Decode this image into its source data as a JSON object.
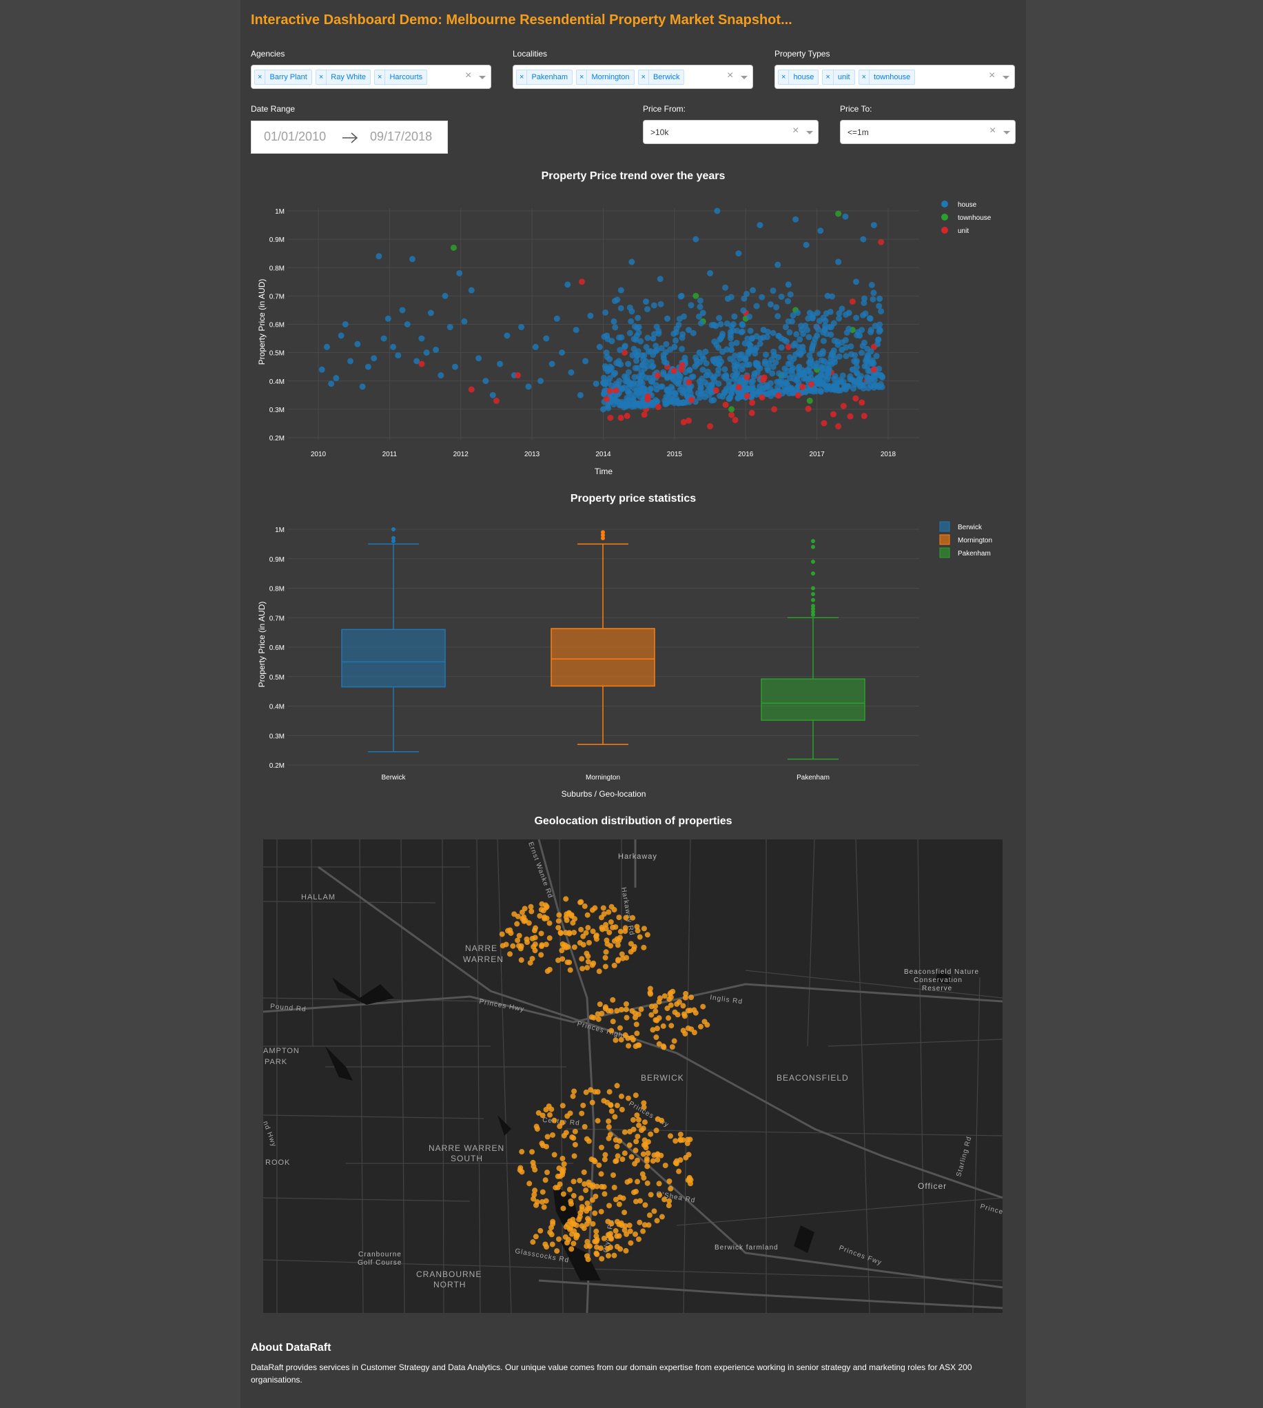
{
  "title": "Interactive Dashboard Demo: Melbourne Resendential Property Market Snapshot...",
  "filters": {
    "agencies": {
      "label": "Agencies",
      "selected": [
        "Barry Plant",
        "Ray White",
        "Harcourts"
      ]
    },
    "localities": {
      "label": "Localities",
      "selected": [
        "Pakenham",
        "Mornington",
        "Berwick"
      ]
    },
    "property_types": {
      "label": "Property Types",
      "selected": [
        "house",
        "unit",
        "townhouse"
      ]
    },
    "date_range": {
      "label": "Date Range",
      "start": "01/01/2010",
      "end": "09/17/2018"
    },
    "price_from": {
      "label": "Price From:",
      "value": ">10k"
    },
    "price_to": {
      "label": "Price To:",
      "value": "<=1m"
    },
    "clear_icon": "×"
  },
  "colors": {
    "accent": "#f49e1c",
    "house": "#1f77b4",
    "townhouse": "#2ca02c",
    "unit": "#d62728",
    "berwick": "#1f77b4",
    "mornington": "#ff7f0e",
    "pakenham": "#2ca02c",
    "map_points": "#f49e1c"
  },
  "scatter_chart": {
    "title": "Property Price trend over the years",
    "chart_data": {
      "type": "scatter",
      "title": "Property Price trend over the years",
      "xlabel": "Time",
      "ylabel": "Property Price (in AUD)",
      "xlim": [
        2009.8,
        2018.3
      ],
      "ylim": [
        180000,
        1020000
      ],
      "x_ticks": [
        "2010",
        "2011",
        "2012",
        "2013",
        "2014",
        "2015",
        "2016",
        "2017",
        "2018"
      ],
      "y_ticks": [
        "0.2M",
        "0.3M",
        "0.4M",
        "0.5M",
        "0.6M",
        "0.7M",
        "0.8M",
        "0.9M",
        "1M"
      ],
      "legend": {
        "position": "top-right"
      },
      "series": [
        {
          "name": "house",
          "points": [
            [
              2010.05,
              440000
            ],
            [
              2010.12,
              520000
            ],
            [
              2010.18,
              390000
            ],
            [
              2010.25,
              410000
            ],
            [
              2010.32,
              560000
            ],
            [
              2010.38,
              600000
            ],
            [
              2010.45,
              470000
            ],
            [
              2010.55,
              530000
            ],
            [
              2010.62,
              380000
            ],
            [
              2010.7,
              450000
            ],
            [
              2010.78,
              480000
            ],
            [
              2010.85,
              840000
            ],
            [
              2010.92,
              550000
            ],
            [
              2010.98,
              620000
            ],
            [
              2011.05,
              520000
            ],
            [
              2011.12,
              490000
            ],
            [
              2011.18,
              650000
            ],
            [
              2011.25,
              600000
            ],
            [
              2011.32,
              830000
            ],
            [
              2011.38,
              470000
            ],
            [
              2011.45,
              550000
            ],
            [
              2011.52,
              500000
            ],
            [
              2011.58,
              640000
            ],
            [
              2011.65,
              510000
            ],
            [
              2011.72,
              420000
            ],
            [
              2011.78,
              700000
            ],
            [
              2011.85,
              590000
            ],
            [
              2011.92,
              450000
            ],
            [
              2011.98,
              780000
            ],
            [
              2012.05,
              610000
            ],
            [
              2012.15,
              720000
            ],
            [
              2012.25,
              480000
            ],
            [
              2012.35,
              400000
            ],
            [
              2012.45,
              350000
            ],
            [
              2012.55,
              460000
            ],
            [
              2012.65,
              560000
            ],
            [
              2012.75,
              420000
            ],
            [
              2012.85,
              590000
            ],
            [
              2012.95,
              380000
            ],
            [
              2013.05,
              520000
            ],
            [
              2013.12,
              400000
            ],
            [
              2013.2,
              550000
            ],
            [
              2013.28,
              460000
            ],
            [
              2013.35,
              620000
            ],
            [
              2013.42,
              500000
            ],
            [
              2013.5,
              740000
            ],
            [
              2013.55,
              430000
            ],
            [
              2013.62,
              580000
            ],
            [
              2013.68,
              350000
            ],
            [
              2013.75,
              470000
            ],
            [
              2013.82,
              630000
            ],
            [
              2013.9,
              390000
            ],
            [
              2013.95,
              520000
            ],
            [
              2014.0,
              300000
            ],
            [
              2014.05,
              560000
            ],
            [
              2014.1,
              440000
            ],
            [
              2014.15,
              610000
            ],
            [
              2014.2,
              380000
            ],
            [
              2014.25,
              720000
            ],
            [
              2014.3,
              520000
            ],
            [
              2014.35,
              460000
            ],
            [
              2014.4,
              820000
            ],
            [
              2014.45,
              350000
            ],
            [
              2014.5,
              590000
            ],
            [
              2014.55,
              490000
            ],
            [
              2014.6,
              680000
            ],
            [
              2014.65,
              410000
            ],
            [
              2014.7,
              550000
            ],
            [
              2014.75,
              370000
            ],
            [
              2014.8,
              760000
            ],
            [
              2014.85,
              480000
            ],
            [
              2014.9,
              620000
            ],
            [
              2014.95,
              430000
            ],
            [
              2015.0,
              520000
            ],
            [
              2015.05,
              390000
            ],
            [
              2015.1,
              700000
            ],
            [
              2015.15,
              460000
            ],
            [
              2015.2,
              580000
            ],
            [
              2015.25,
              340000
            ],
            [
              2015.3,
              900000
            ],
            [
              2015.35,
              500000
            ],
            [
              2015.4,
              640000
            ],
            [
              2015.45,
              420000
            ],
            [
              2015.5,
              780000
            ],
            [
              2015.55,
              470000
            ],
            [
              2015.6,
              1000000
            ],
            [
              2015.65,
              550000
            ],
            [
              2015.7,
              360000
            ],
            [
              2015.75,
              690000
            ],
            [
              2015.8,
              510000
            ],
            [
              2015.85,
              440000
            ],
            [
              2015.9,
              850000
            ],
            [
              2015.95,
              600000
            ],
            [
              2016.0,
              400000
            ],
            [
              2016.05,
              530000
            ],
            [
              2016.1,
              720000
            ],
            [
              2016.15,
              460000
            ],
            [
              2016.2,
              950000
            ],
            [
              2016.25,
              580000
            ],
            [
              2016.3,
              380000
            ],
            [
              2016.35,
              670000
            ],
            [
              2016.4,
              490000
            ],
            [
              2016.45,
              810000
            ],
            [
              2016.5,
              550000
            ],
            [
              2016.55,
              420000
            ],
            [
              2016.6,
              740000
            ],
            [
              2016.65,
              610000
            ],
            [
              2016.7,
              970000
            ],
            [
              2016.75,
              450000
            ],
            [
              2016.8,
              520000
            ],
            [
              2016.85,
              880000
            ],
            [
              2016.9,
              640000
            ],
            [
              2016.95,
              400000
            ],
            [
              2017.0,
              560000
            ],
            [
              2017.05,
              930000
            ],
            [
              2017.1,
              470000
            ],
            [
              2017.15,
              700000
            ],
            [
              2017.2,
              590000
            ],
            [
              2017.25,
              380000
            ],
            [
              2017.3,
              820000
            ],
            [
              2017.35,
              510000
            ],
            [
              2017.4,
              980000
            ],
            [
              2017.45,
              640000
            ],
            [
              2017.5,
              440000
            ],
            [
              2017.55,
              750000
            ],
            [
              2017.6,
              560000
            ],
            [
              2017.65,
              900000
            ],
            [
              2017.7,
              480000
            ],
            [
              2017.75,
              620000
            ],
            [
              2017.8,
              950000
            ],
            [
              2017.85,
              530000
            ],
            [
              2017.88,
              690000
            ],
            [
              2017.9,
              420000
            ]
          ]
        },
        {
          "name": "townhouse",
          "points": [
            [
              2011.9,
              870000
            ],
            [
              2015.3,
              700000
            ],
            [
              2015.4,
              610000
            ],
            [
              2015.8,
              300000
            ],
            [
              2016.0,
              620000
            ],
            [
              2016.5,
              420000
            ],
            [
              2016.7,
              650000
            ],
            [
              2016.9,
              330000
            ],
            [
              2017.0,
              440000
            ],
            [
              2017.3,
              990000
            ],
            [
              2017.5,
              580000
            ]
          ]
        },
        {
          "name": "unit",
          "points": [
            [
              2011.45,
              460000
            ],
            [
              2012.15,
              370000
            ],
            [
              2012.5,
              330000
            ],
            [
              2012.8,
              420000
            ],
            [
              2013.7,
              750000
            ],
            [
              2014.1,
              270000
            ],
            [
              2014.3,
              500000
            ],
            [
              2014.6,
              300000
            ],
            [
              2014.9,
              450000
            ],
            [
              2015.2,
              260000
            ],
            [
              2015.5,
              240000
            ],
            [
              2015.8,
              280000
            ],
            [
              2016.0,
              640000
            ],
            [
              2016.2,
              410000
            ],
            [
              2016.4,
              300000
            ],
            [
              2016.6,
              520000
            ],
            [
              2016.8,
              360000
            ],
            [
              2017.0,
              590000
            ],
            [
              2017.2,
              430000
            ],
            [
              2017.3,
              240000
            ],
            [
              2017.5,
              680000
            ],
            [
              2017.7,
              400000
            ],
            [
              2017.8,
              520000
            ],
            [
              2017.9,
              890000
            ]
          ]
        }
      ]
    }
  },
  "box_chart": {
    "title": "Property price statistics",
    "chart_data": {
      "type": "box",
      "title": "Property price statistics",
      "xlabel": "Suburbs / Geo-location",
      "ylabel": "Property Price (in AUD)",
      "ylim": [
        190000,
        1030000
      ],
      "y_ticks": [
        "0.2M",
        "0.3M",
        "0.4M",
        "0.5M",
        "0.6M",
        "0.7M",
        "0.8M",
        "0.9M",
        "1M"
      ],
      "categories": [
        "Berwick",
        "Mornington",
        "Pakenham"
      ],
      "legend": {
        "position": "top-right"
      },
      "series": [
        {
          "name": "Berwick",
          "min": 245000,
          "q1": 465000,
          "median": 550000,
          "q3": 660000,
          "max": 950000,
          "outliers": [
            960000,
            970000,
            1000000
          ]
        },
        {
          "name": "Mornington",
          "min": 270000,
          "q1": 468000,
          "median": 560000,
          "q3": 663000,
          "max": 950000,
          "outliers": [
            970000,
            980000,
            990000
          ]
        },
        {
          "name": "Pakenham",
          "min": 220000,
          "q1": 352000,
          "median": 410000,
          "q3": 492000,
          "max": 700000,
          "outliers": [
            710000,
            720000,
            730000,
            740000,
            760000,
            780000,
            800000,
            850000,
            890000,
            940000,
            960000
          ]
        }
      ]
    }
  },
  "map": {
    "title": "Geolocation distribution of properties",
    "labels": {
      "hallam": "HALLAM",
      "narre_warren": "NARRE",
      "narre_warren_2": "WARREN",
      "harkaway": "Harkaway",
      "ernst_wanke_rd": "Ernst Wanke Rd",
      "harkaway_rd": "Harkaway Rd",
      "pound_rd": "Pound Rd",
      "princes_hwy": "Princes Hwy",
      "princes_highway": "Princes Highway",
      "inglis_rd": "Inglis Rd",
      "hampton_park": "AMPTON",
      "hampton_park_2": "PARK",
      "berwick": "BERWICK",
      "beaconsfield": "BEACONSFIELD",
      "beaconsfield_reserve": "Beaconsfield Nature",
      "beaconsfield_reserve_2": "Conservation",
      "beaconsfield_reserve_3": "Reserve",
      "princes_fwy": "Princes Fwy",
      "centre_rd": "Centre Rd",
      "narre_warren_south": "NARRE WARREN",
      "narre_warren_south_2": "SOUTH",
      "rook": "ROOK",
      "officer": "Officer",
      "starling_rd": "Starling Rd",
      "osheas_rd": "O'Shea Rd",
      "clyde_rd": "Clyde Rd",
      "glasscocks_rd": "Glasscocks Rd",
      "berwick_farmland": "Berwick farmland",
      "princes_fwy_2": "Princes Fwy",
      "cranbourne_golf": "Cranbourne",
      "cranbourne_golf_2": "Golf Course",
      "cranbourne_north": "CRANBOURNE",
      "cranbourne_north_2": "NORTH",
      "princes_east": "Prince",
      "hwy_west": "nd Hwy"
    }
  },
  "about": {
    "title": "About DataRaft",
    "text": "DataRaft provides services in Customer Strategy and Data Analytics. Our unique value comes from our domain expertise from experience working in senior strategy and marketing roles for ASX 200 organisations."
  }
}
